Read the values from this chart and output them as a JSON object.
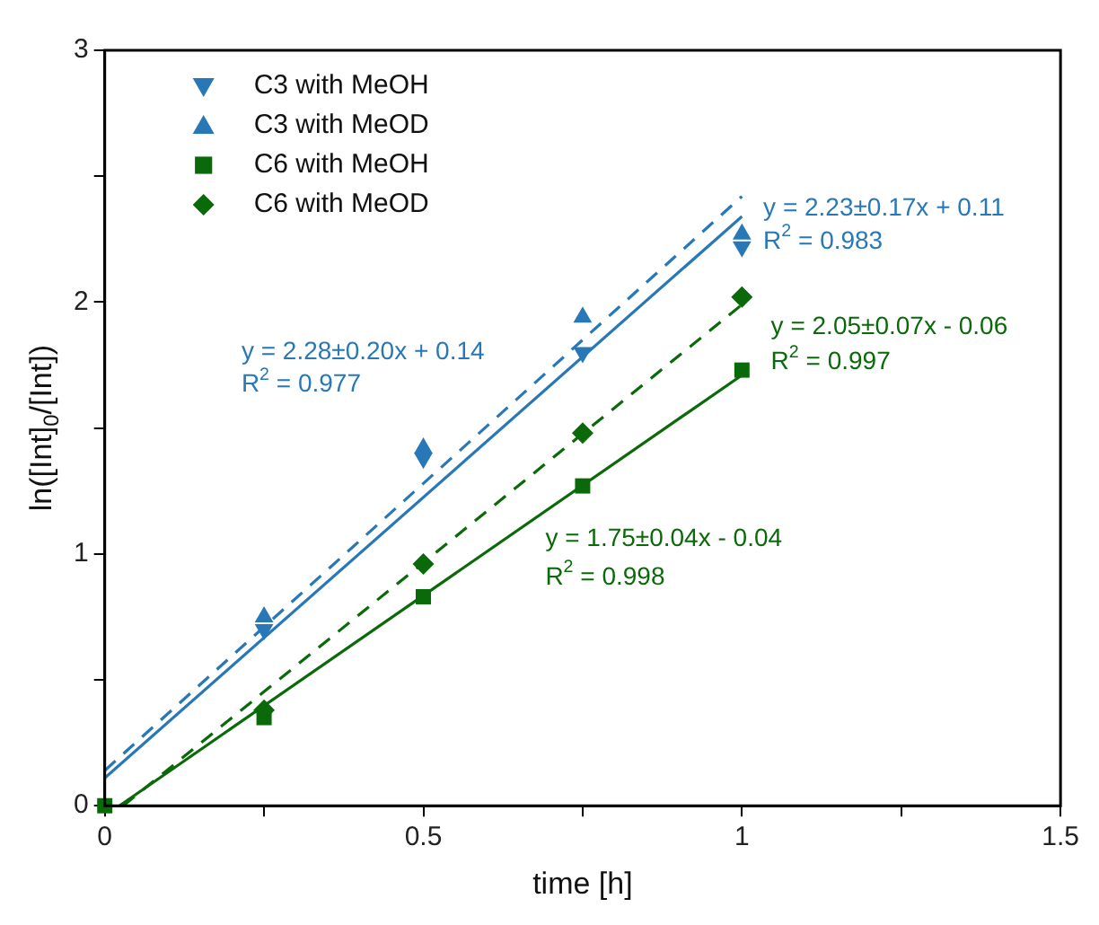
{
  "chart_data": {
    "type": "scatter",
    "xlabel": "time [h]",
    "ylabel": "ln([Int]$_{0}$/[Int])",
    "xlim": [
      0,
      1.5
    ],
    "ylim": [
      0,
      3
    ],
    "xticks": [
      0,
      {
        "value": 0.25,
        "label": null
      },
      0.5,
      {
        "value": 0.75,
        "label": null
      },
      1,
      {
        "value": 1.25,
        "label": null
      },
      1.5
    ],
    "yticks": [
      0,
      {
        "value": 0.5,
        "label": null
      },
      1,
      {
        "value": 1.5,
        "label": null
      },
      2,
      {
        "value": 2.5,
        "label": null
      },
      3
    ],
    "grid": false,
    "legend": "top left",
    "series": [
      {
        "name": "C3 with MeOH",
        "color": "#2878b8",
        "marker": "triangle-down",
        "x": [
          0.25,
          0.5,
          0.75,
          1
        ],
        "values": [
          0.7,
          1.38,
          1.8,
          2.22
        ]
      },
      {
        "name": "C3 with MeOD",
        "color": "#2878b8",
        "marker": "triangle",
        "x": [
          0.25,
          0.5,
          0.75,
          1
        ],
        "values": [
          0.75,
          1.42,
          1.94,
          2.27
        ]
      },
      {
        "name": "C6 with MeOH",
        "color": "#0a6a0a",
        "marker": "square",
        "x": [
          0,
          0.25,
          0.5,
          0.75,
          1
        ],
        "values": [
          0,
          0.35,
          0.83,
          1.27,
          1.73
        ]
      },
      {
        "name": "C6 with MeOD",
        "color": "#0a6a0a",
        "marker": "diamond",
        "x": [
          0.25,
          0.5,
          0.75,
          1
        ],
        "values": [
          0.38,
          0.96,
          1.48,
          2.02
        ]
      },
      {
        "type": "line",
        "color": "#2878b8",
        "line_style": "solid",
        "marker": "none",
        "x": [
          0,
          1
        ],
        "values": [
          0.11,
          2.34
        ]
      },
      {
        "type": "line",
        "color": "#2878b8",
        "line_style": "dashed",
        "marker": "none",
        "x": [
          0,
          1
        ],
        "values": [
          0.14,
          2.42
        ]
      },
      {
        "type": "line",
        "color": "#0a6a0a",
        "line_style": "solid",
        "marker": "none",
        "x": [
          0.023,
          1
        ],
        "values": [
          0,
          1.71
        ]
      },
      {
        "type": "line",
        "color": "#0a6a0a",
        "line_style": "dashed",
        "marker": "none",
        "x": [
          0.029,
          1
        ],
        "values": [
          0,
          1.99
        ]
      }
    ],
    "annotations": [
      "y = 2.28±0.20x + 0.14",
      "R$^{2}$ = 0.977",
      "y = 2.23±0.17x + 0.11",
      "R$^{2}$ = 0.983",
      "y = 2.05±0.07x - 0.06",
      "R$^{2}$ = 0.997",
      "y = 1.75±0.04x - 0.04",
      "R$^{2}$ = 0.998"
    ]
  }
}
